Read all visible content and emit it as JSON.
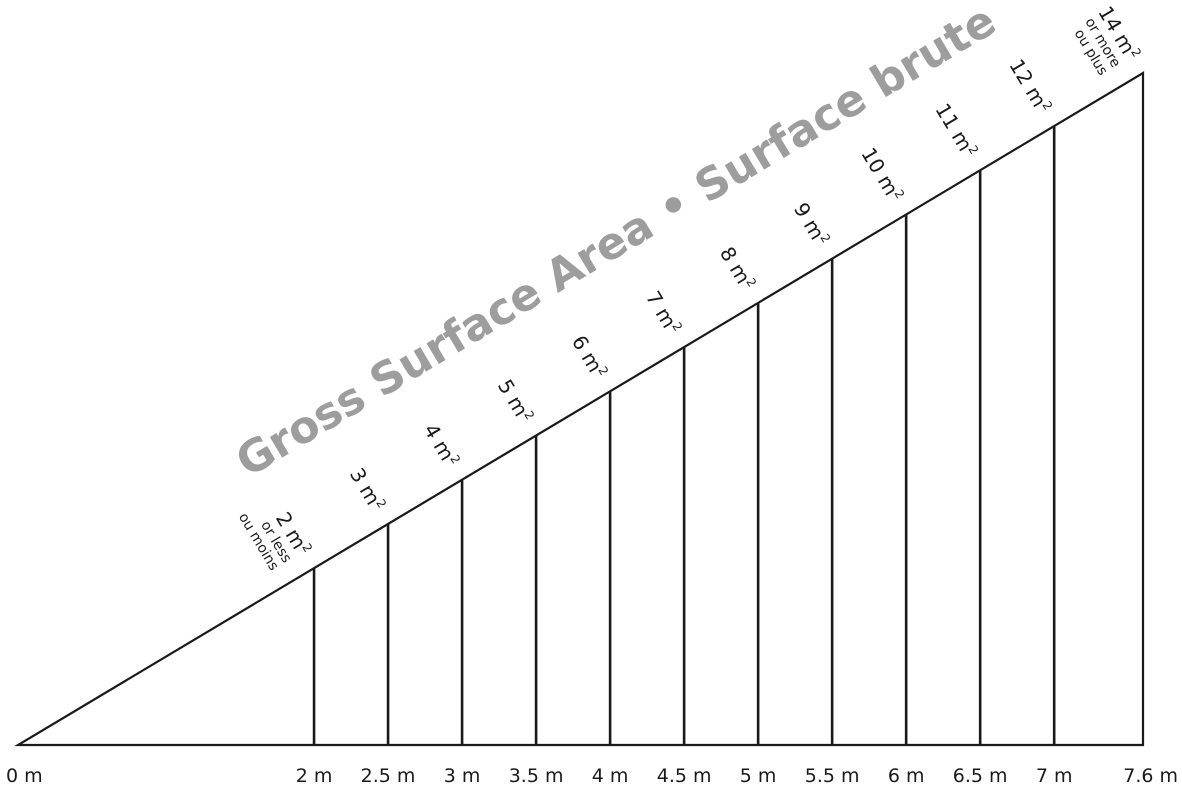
{
  "title": "Gross Surface Area • Surface brute",
  "origin_label": "0 m",
  "end_label": "7.6 m",
  "distances": [
    {
      "value": 2,
      "label": "2 m"
    },
    {
      "value": 2.5,
      "label": "2.5 m"
    },
    {
      "value": 3,
      "label": "3 m"
    },
    {
      "value": 3.5,
      "label": "3.5 m"
    },
    {
      "value": 4,
      "label": "4 m"
    },
    {
      "value": 4.5,
      "label": "4.5 m"
    },
    {
      "value": 5,
      "label": "5 m"
    },
    {
      "value": 5.5,
      "label": "5.5 m"
    },
    {
      "value": 6,
      "label": "6 m"
    },
    {
      "value": 6.5,
      "label": "6.5 m"
    },
    {
      "value": 7,
      "label": "7 m"
    }
  ],
  "areas": [
    {
      "text": "2 m",
      "sup": "2",
      "sub": [
        "or less",
        "ou moins"
      ]
    },
    {
      "text": "3 m",
      "sup": "2",
      "sub": []
    },
    {
      "text": "4 m",
      "sup": "2",
      "sub": []
    },
    {
      "text": "5 m",
      "sup": "2",
      "sub": []
    },
    {
      "text": "6 m",
      "sup": "2",
      "sub": []
    },
    {
      "text": "7 m",
      "sup": "2",
      "sub": []
    },
    {
      "text": "8 m",
      "sup": "2",
      "sub": []
    },
    {
      "text": "9 m",
      "sup": "2",
      "sub": []
    },
    {
      "text": "10 m",
      "sup": "2",
      "sub": []
    },
    {
      "text": "11 m",
      "sup": "2",
      "sub": []
    },
    {
      "text": "12 m",
      "sup": "2",
      "sub": []
    },
    {
      "text": "14 m",
      "sup": "2",
      "sub": [
        "or more",
        "ou plus"
      ]
    }
  ],
  "colors": {
    "line": "#1a1a1a",
    "title": "#9d9d9d"
  }
}
